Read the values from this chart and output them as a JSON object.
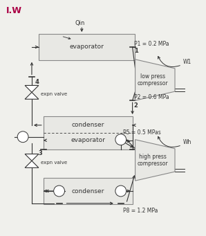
{
  "bg_color": "#f0f0ec",
  "box_edge": "#888888",
  "box_face": "#e8e8e4",
  "line_color": "#333333",
  "text_color": "#333333",
  "watermark_color": "#aa0044",
  "cond1_label": "condenser",
  "evap_cond_label1": "evaporator",
  "evap_cond_label2": "condenser",
  "evap2_label": "evaporator",
  "high_comp_label": "high press\ncompressor",
  "low_comp_label": "low press\ncompressor",
  "P8_label": "P8 = 1.2 MPa",
  "P5_label": "P5 = 0.5 MPas",
  "P2_label": "P2 = 0.6 MPa",
  "P1_label": "P1 = 0.2 MPa",
  "Wh_label": "Wh",
  "W1_label": "W1",
  "Qin_label": "Qin",
  "expn_label": "expn valve",
  "watermark": "I.W"
}
